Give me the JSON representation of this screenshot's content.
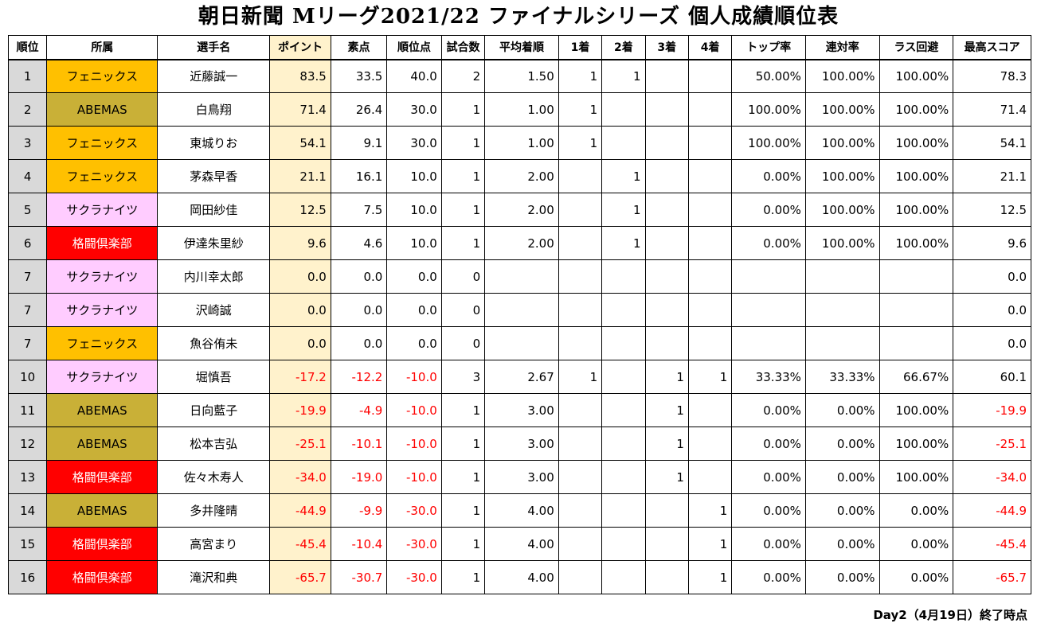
{
  "title": "朝日新聞 Mリーグ2021/22 ファイナルシリーズ 個人成績順位表",
  "columns": [
    "順位",
    "所属",
    "選手名",
    "ポイント",
    "素点",
    "順位点",
    "試合数",
    "平均着順",
    "1着",
    "2着",
    "3着",
    "4着",
    "トップ率",
    "連対率",
    "ラス回避",
    "最高スコア"
  ],
  "team_colors": {
    "phoenix": "#ffc000",
    "abemas": "#c9b037",
    "sakura": "#ffccff",
    "kakuto": "#ff0000"
  },
  "rows": [
    {
      "rank": "1",
      "team": "フェニックス",
      "team_key": "phoenix",
      "name": "近藤誠一",
      "points": "83.5",
      "raw": "33.5",
      "placement": "40.0",
      "games": "2",
      "avg": "1.50",
      "first": "1",
      "second": "1",
      "third": "",
      "fourth": "",
      "top_rate": "50.00%",
      "rentai": "100.00%",
      "las": "100.00%",
      "best": "78.3"
    },
    {
      "rank": "2",
      "team": "ABEMAS",
      "team_key": "abemas",
      "name": "白鳥翔",
      "points": "71.4",
      "raw": "26.4",
      "placement": "30.0",
      "games": "1",
      "avg": "1.00",
      "first": "1",
      "second": "",
      "third": "",
      "fourth": "",
      "top_rate": "100.00%",
      "rentai": "100.00%",
      "las": "100.00%",
      "best": "71.4"
    },
    {
      "rank": "3",
      "team": "フェニックス",
      "team_key": "phoenix",
      "name": "東城りお",
      "points": "54.1",
      "raw": "9.1",
      "placement": "30.0",
      "games": "1",
      "avg": "1.00",
      "first": "1",
      "second": "",
      "third": "",
      "fourth": "",
      "top_rate": "100.00%",
      "rentai": "100.00%",
      "las": "100.00%",
      "best": "54.1"
    },
    {
      "rank": "4",
      "team": "フェニックス",
      "team_key": "phoenix",
      "name": "茅森早香",
      "points": "21.1",
      "raw": "16.1",
      "placement": "10.0",
      "games": "1",
      "avg": "2.00",
      "first": "",
      "second": "1",
      "third": "",
      "fourth": "",
      "top_rate": "0.00%",
      "rentai": "100.00%",
      "las": "100.00%",
      "best": "21.1"
    },
    {
      "rank": "5",
      "team": "サクラナイツ",
      "team_key": "sakura",
      "name": "岡田紗佳",
      "points": "12.5",
      "raw": "7.5",
      "placement": "10.0",
      "games": "1",
      "avg": "2.00",
      "first": "",
      "second": "1",
      "third": "",
      "fourth": "",
      "top_rate": "0.00%",
      "rentai": "100.00%",
      "las": "100.00%",
      "best": "12.5"
    },
    {
      "rank": "6",
      "team": "格闘倶楽部",
      "team_key": "kakuto",
      "name": "伊達朱里紗",
      "points": "9.6",
      "raw": "4.6",
      "placement": "10.0",
      "games": "1",
      "avg": "2.00",
      "first": "",
      "second": "1",
      "third": "",
      "fourth": "",
      "top_rate": "0.00%",
      "rentai": "100.00%",
      "las": "100.00%",
      "best": "9.6"
    },
    {
      "rank": "7",
      "team": "サクラナイツ",
      "team_key": "sakura",
      "name": "内川幸太郎",
      "points": "0.0",
      "raw": "0.0",
      "placement": "0.0",
      "games": "0",
      "avg": "",
      "first": "",
      "second": "",
      "third": "",
      "fourth": "",
      "top_rate": "",
      "rentai": "",
      "las": "",
      "best": "0.0"
    },
    {
      "rank": "7",
      "team": "サクラナイツ",
      "team_key": "sakura",
      "name": "沢崎誠",
      "points": "0.0",
      "raw": "0.0",
      "placement": "0.0",
      "games": "0",
      "avg": "",
      "first": "",
      "second": "",
      "third": "",
      "fourth": "",
      "top_rate": "",
      "rentai": "",
      "las": "",
      "best": "0.0"
    },
    {
      "rank": "7",
      "team": "フェニックス",
      "team_key": "phoenix",
      "name": "魚谷侑未",
      "points": "0.0",
      "raw": "0.0",
      "placement": "0.0",
      "games": "0",
      "avg": "",
      "first": "",
      "second": "",
      "third": "",
      "fourth": "",
      "top_rate": "",
      "rentai": "",
      "las": "",
      "best": "0.0"
    },
    {
      "rank": "10",
      "team": "サクラナイツ",
      "team_key": "sakura",
      "name": "堀慎吾",
      "points": "-17.2",
      "raw": "-12.2",
      "placement": "-10.0",
      "games": "3",
      "avg": "2.67",
      "first": "1",
      "second": "",
      "third": "1",
      "fourth": "1",
      "top_rate": "33.33%",
      "rentai": "33.33%",
      "las": "66.67%",
      "best": "60.1"
    },
    {
      "rank": "11",
      "team": "ABEMAS",
      "team_key": "abemas",
      "name": "日向藍子",
      "points": "-19.9",
      "raw": "-4.9",
      "placement": "-10.0",
      "games": "1",
      "avg": "3.00",
      "first": "",
      "second": "",
      "third": "1",
      "fourth": "",
      "top_rate": "0.00%",
      "rentai": "0.00%",
      "las": "100.00%",
      "best": "-19.9"
    },
    {
      "rank": "12",
      "team": "ABEMAS",
      "team_key": "abemas",
      "name": "松本吉弘",
      "points": "-25.1",
      "raw": "-10.1",
      "placement": "-10.0",
      "games": "1",
      "avg": "3.00",
      "first": "",
      "second": "",
      "third": "1",
      "fourth": "",
      "top_rate": "0.00%",
      "rentai": "0.00%",
      "las": "100.00%",
      "best": "-25.1"
    },
    {
      "rank": "13",
      "team": "格闘倶楽部",
      "team_key": "kakuto",
      "name": "佐々木寿人",
      "points": "-34.0",
      "raw": "-19.0",
      "placement": "-10.0",
      "games": "1",
      "avg": "3.00",
      "first": "",
      "second": "",
      "third": "1",
      "fourth": "",
      "top_rate": "0.00%",
      "rentai": "0.00%",
      "las": "100.00%",
      "best": "-34.0"
    },
    {
      "rank": "14",
      "team": "ABEMAS",
      "team_key": "abemas",
      "name": "多井隆晴",
      "points": "-44.9",
      "raw": "-9.9",
      "placement": "-30.0",
      "games": "1",
      "avg": "4.00",
      "first": "",
      "second": "",
      "third": "",
      "fourth": "1",
      "top_rate": "0.00%",
      "rentai": "0.00%",
      "las": "0.00%",
      "best": "-44.9"
    },
    {
      "rank": "15",
      "team": "格闘倶楽部",
      "team_key": "kakuto",
      "name": "高宮まり",
      "points": "-45.4",
      "raw": "-10.4",
      "placement": "-30.0",
      "games": "1",
      "avg": "4.00",
      "first": "",
      "second": "",
      "third": "",
      "fourth": "1",
      "top_rate": "0.00%",
      "rentai": "0.00%",
      "las": "0.00%",
      "best": "-45.4"
    },
    {
      "rank": "16",
      "team": "格闘倶楽部",
      "team_key": "kakuto",
      "name": "滝沢和典",
      "points": "-65.7",
      "raw": "-30.7",
      "placement": "-30.0",
      "games": "1",
      "avg": "4.00",
      "first": "",
      "second": "",
      "third": "",
      "fourth": "1",
      "top_rate": "0.00%",
      "rentai": "0.00%",
      "las": "0.00%",
      "best": "-65.7"
    }
  ],
  "footer": "Day2（4月19日）終了時点"
}
